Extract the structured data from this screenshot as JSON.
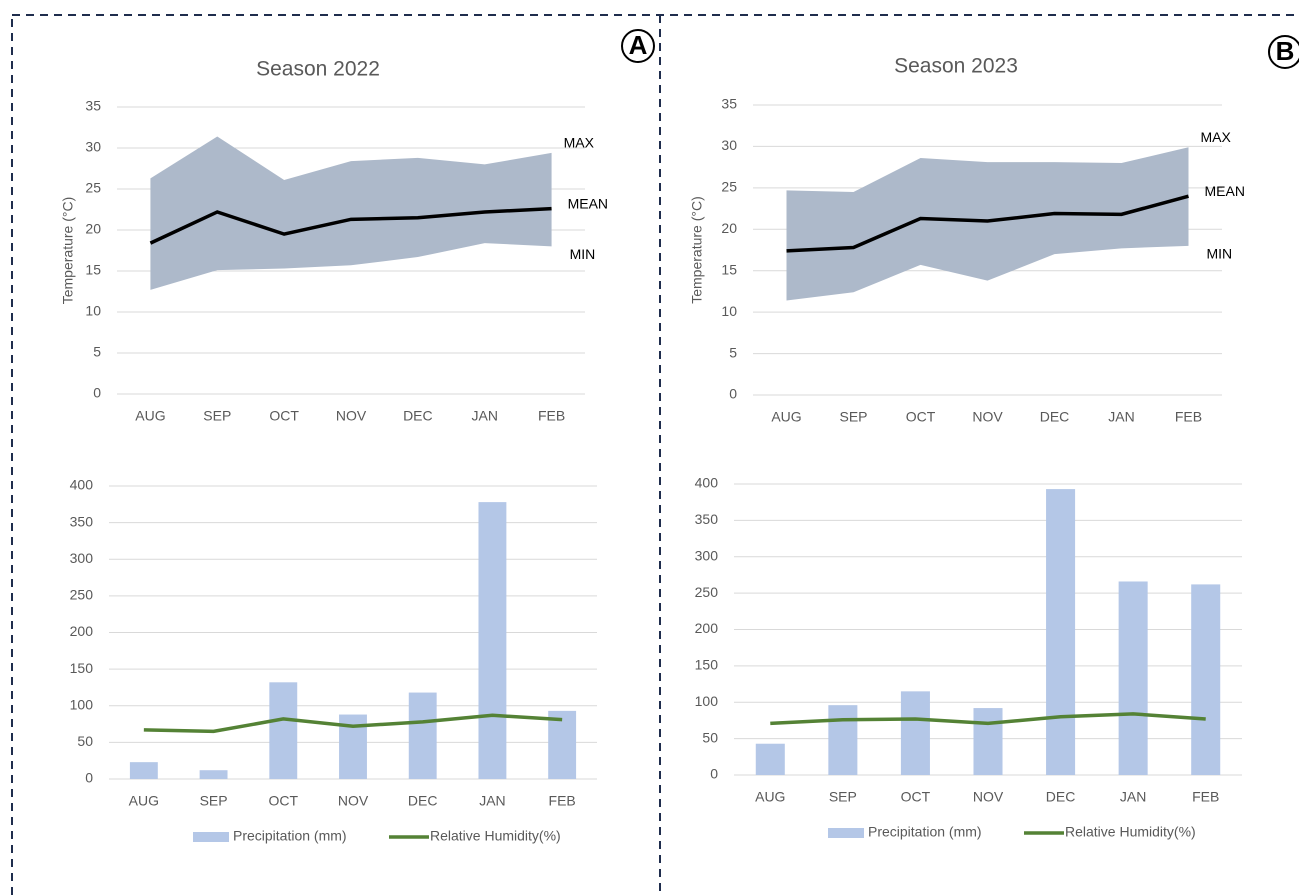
{
  "chart_data": [
    {
      "type": "area_band",
      "title": "Season 2022",
      "panel_label": "A",
      "y_label": "Temperature (°C)",
      "categories": [
        "AUG",
        "SEP",
        "OCT",
        "NOV",
        "DEC",
        "JAN",
        "FEB"
      ],
      "ylim": [
        0,
        35
      ],
      "yticks": [
        0,
        5,
        10,
        15,
        20,
        25,
        30,
        35
      ],
      "grid": true,
      "series": [
        {
          "name": "MAX",
          "color": "#adb9ca",
          "values": [
            26.3,
            31.4,
            26.1,
            28.4,
            28.8,
            28.0,
            29.4
          ]
        },
        {
          "name": "MEAN",
          "color": "#000000",
          "values": [
            18.4,
            22.2,
            19.5,
            21.3,
            21.5,
            22.2,
            22.6
          ]
        },
        {
          "name": "MIN",
          "color": "#adb9ca",
          "values": [
            12.7,
            15.1,
            15.3,
            15.7,
            16.7,
            18.4,
            18.0
          ]
        }
      ]
    },
    {
      "type": "area_band",
      "title": "Season 2023",
      "panel_label": "B",
      "y_label": "Temperature (°C)",
      "categories": [
        "AUG",
        "SEP",
        "OCT",
        "NOV",
        "DEC",
        "JAN",
        "FEB"
      ],
      "ylim": [
        0,
        35
      ],
      "yticks": [
        0,
        5,
        10,
        15,
        20,
        25,
        30,
        35
      ],
      "grid": true,
      "series": [
        {
          "name": "MAX",
          "color": "#adb9ca",
          "values": [
            24.7,
            24.5,
            28.6,
            28.1,
            28.1,
            28.0,
            29.9
          ]
        },
        {
          "name": "MEAN",
          "color": "#000000",
          "values": [
            17.4,
            17.8,
            21.3,
            21.0,
            21.9,
            21.8,
            24.0
          ]
        },
        {
          "name": "MIN",
          "color": "#adb9ca",
          "values": [
            11.4,
            12.4,
            15.7,
            13.8,
            17.0,
            17.7,
            18.0
          ]
        }
      ]
    },
    {
      "type": "bar_line",
      "categories": [
        "AUG",
        "SEP",
        "OCT",
        "NOV",
        "DEC",
        "JAN",
        "FEB"
      ],
      "ylim": [
        0,
        400
      ],
      "yticks": [
        0,
        50,
        100,
        150,
        200,
        250,
        300,
        350,
        400
      ],
      "grid": true,
      "series": [
        {
          "name": "Precipitation (mm)",
          "color": "#b4c7e7",
          "kind": "bar",
          "values": [
            23,
            12,
            132,
            88,
            118,
            378,
            93
          ]
        },
        {
          "name": "Relative Humidity(%)",
          "color": "#548235",
          "kind": "line",
          "values": [
            67,
            65,
            82,
            72,
            78,
            87,
            81
          ]
        }
      ]
    },
    {
      "type": "bar_line",
      "categories": [
        "AUG",
        "SEP",
        "OCT",
        "NOV",
        "DEC",
        "JAN",
        "FEB"
      ],
      "ylim": [
        0,
        400
      ],
      "yticks": [
        0,
        50,
        100,
        150,
        200,
        250,
        300,
        350,
        400
      ],
      "grid": true,
      "series": [
        {
          "name": "Precipitation (mm)",
          "color": "#b4c7e7",
          "kind": "bar",
          "values": [
            43,
            96,
            115,
            92,
            393,
            266,
            262
          ]
        },
        {
          "name": "Relative Humidity(%)",
          "color": "#548235",
          "kind": "line",
          "values": [
            71,
            76,
            77,
            71,
            80,
            84,
            77
          ]
        }
      ]
    }
  ]
}
